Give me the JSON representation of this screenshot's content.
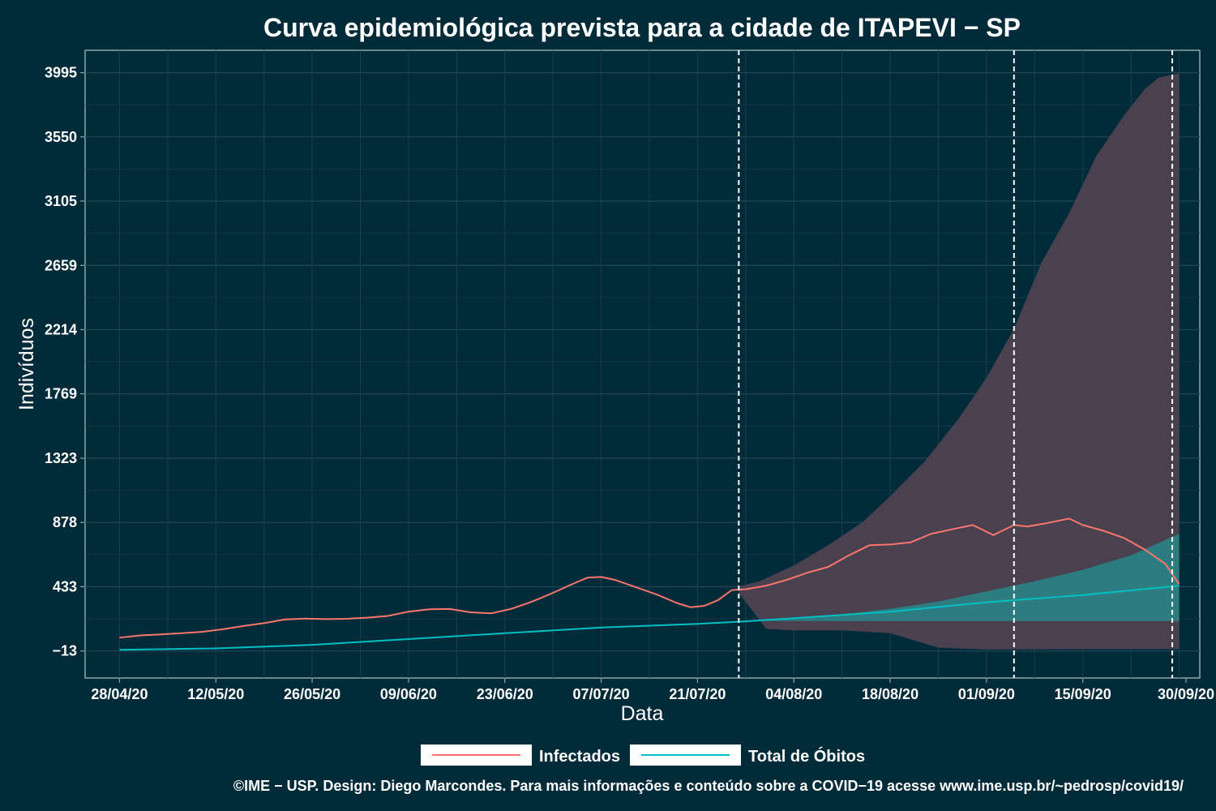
{
  "chart_data": {
    "type": "line",
    "title": "Curva epidemiológica prevista para a cidade de ITAPEVI − SP",
    "xlabel": "Data",
    "ylabel": "Indivíduos",
    "x_range": [
      "2020-04-23",
      "2020-10-02"
    ],
    "ylim": [
      -200,
      4150
    ],
    "y_ticks": [
      -13,
      433,
      878,
      1323,
      1769,
      2214,
      2659,
      3105,
      3550,
      3995
    ],
    "y_tick_labels": [
      "−13",
      "433",
      "878",
      "1323",
      "1769",
      "2214",
      "2659",
      "3105",
      "3550",
      "3995"
    ],
    "x_ticks": [
      "2020-04-28",
      "2020-05-12",
      "2020-05-26",
      "2020-06-09",
      "2020-06-23",
      "2020-07-07",
      "2020-07-21",
      "2020-08-04",
      "2020-08-18",
      "2020-09-01",
      "2020-09-15",
      "2020-09-30"
    ],
    "x_tick_labels": [
      "28/04/20",
      "12/05/20",
      "26/05/20",
      "09/06/20",
      "23/06/20",
      "07/07/20",
      "21/07/20",
      "04/08/20",
      "18/08/20",
      "01/09/20",
      "15/09/20",
      "30/09/20"
    ],
    "vlines": [
      "2020-07-27",
      "2020-09-05",
      "2020-09-28"
    ],
    "grid": true,
    "legend_position": "bottom",
    "series": [
      {
        "name": "Infectados",
        "color": "#f8766d",
        "points": [
          [
            "2020-04-28",
            80
          ],
          [
            "2020-05-01",
            95
          ],
          [
            "2020-05-04",
            102
          ],
          [
            "2020-05-07",
            110
          ],
          [
            "2020-05-10",
            120
          ],
          [
            "2020-05-13",
            138
          ],
          [
            "2020-05-16",
            160
          ],
          [
            "2020-05-19",
            180
          ],
          [
            "2020-05-22",
            205
          ],
          [
            "2020-05-25",
            212
          ],
          [
            "2020-05-28",
            208
          ],
          [
            "2020-05-31",
            210
          ],
          [
            "2020-06-03",
            218
          ],
          [
            "2020-06-06",
            230
          ],
          [
            "2020-06-09",
            260
          ],
          [
            "2020-06-12",
            276
          ],
          [
            "2020-06-15",
            278
          ],
          [
            "2020-06-18",
            255
          ],
          [
            "2020-06-21",
            248
          ],
          [
            "2020-06-24",
            280
          ],
          [
            "2020-06-27",
            330
          ],
          [
            "2020-06-30",
            390
          ],
          [
            "2020-07-03",
            455
          ],
          [
            "2020-07-05",
            495
          ],
          [
            "2020-07-07",
            500
          ],
          [
            "2020-07-09",
            480
          ],
          [
            "2020-07-12",
            430
          ],
          [
            "2020-07-15",
            380
          ],
          [
            "2020-07-18",
            320
          ],
          [
            "2020-07-20",
            290
          ],
          [
            "2020-07-22",
            300
          ],
          [
            "2020-07-24",
            340
          ],
          [
            "2020-07-26",
            410
          ],
          [
            "2020-07-28",
            415
          ],
          [
            "2020-07-31",
            440
          ],
          [
            "2020-08-03",
            480
          ],
          [
            "2020-08-06",
            530
          ],
          [
            "2020-08-09",
            570
          ],
          [
            "2020-08-12",
            650
          ],
          [
            "2020-08-15",
            720
          ],
          [
            "2020-08-18",
            725
          ],
          [
            "2020-08-21",
            740
          ],
          [
            "2020-08-24",
            800
          ],
          [
            "2020-08-27",
            830
          ],
          [
            "2020-08-30",
            860
          ],
          [
            "2020-09-02",
            790
          ],
          [
            "2020-09-05",
            860
          ],
          [
            "2020-09-07",
            850
          ],
          [
            "2020-09-10",
            875
          ],
          [
            "2020-09-13",
            905
          ],
          [
            "2020-09-15",
            860
          ],
          [
            "2020-09-18",
            820
          ],
          [
            "2020-09-21",
            770
          ],
          [
            "2020-09-24",
            690
          ],
          [
            "2020-09-27",
            590
          ],
          [
            "2020-09-29",
            450
          ]
        ]
      },
      {
        "name": "Total de Óbitos",
        "color": "#00bfc4",
        "points": [
          [
            "2020-04-28",
            -5
          ],
          [
            "2020-05-12",
            5
          ],
          [
            "2020-05-26",
            30
          ],
          [
            "2020-06-09",
            70
          ],
          [
            "2020-06-23",
            110
          ],
          [
            "2020-07-07",
            150
          ],
          [
            "2020-07-21",
            175
          ],
          [
            "2020-07-27",
            190
          ],
          [
            "2020-08-04",
            215
          ],
          [
            "2020-08-18",
            260
          ],
          [
            "2020-09-01",
            325
          ],
          [
            "2020-09-15",
            375
          ],
          [
            "2020-09-29",
            440
          ]
        ]
      }
    ],
    "bands": [
      {
        "color": "#4a4150",
        "upper": [
          [
            "2020-07-27",
            433
          ],
          [
            "2020-07-30",
            470
          ],
          [
            "2020-08-04",
            580
          ],
          [
            "2020-08-09",
            720
          ],
          [
            "2020-08-14",
            880
          ],
          [
            "2020-08-18",
            1060
          ],
          [
            "2020-08-23",
            1300
          ],
          [
            "2020-08-28",
            1600
          ],
          [
            "2020-09-01",
            1880
          ],
          [
            "2020-09-05",
            2220
          ],
          [
            "2020-09-09",
            2680
          ],
          [
            "2020-09-13",
            3020
          ],
          [
            "2020-09-17",
            3420
          ],
          [
            "2020-09-21",
            3700
          ],
          [
            "2020-09-24",
            3880
          ],
          [
            "2020-09-26",
            3960
          ],
          [
            "2020-09-29",
            3990
          ]
        ],
        "lower": [
          [
            "2020-09-29",
            0
          ],
          [
            "2020-09-15",
            0
          ],
          [
            "2020-09-01",
            -3
          ],
          [
            "2020-08-25",
            10
          ],
          [
            "2020-08-18",
            110
          ],
          [
            "2020-08-11",
            130
          ],
          [
            "2020-08-04",
            130
          ],
          [
            "2020-07-31",
            140
          ],
          [
            "2020-07-27",
            390
          ]
        ]
      },
      {
        "color": "#2d7d80",
        "upper": [
          [
            "2020-07-27",
            190
          ],
          [
            "2020-08-04",
            215
          ],
          [
            "2020-08-11",
            240
          ],
          [
            "2020-08-18",
            280
          ],
          [
            "2020-08-25",
            330
          ],
          [
            "2020-09-01",
            400
          ],
          [
            "2020-09-08",
            470
          ],
          [
            "2020-09-15",
            550
          ],
          [
            "2020-09-22",
            650
          ],
          [
            "2020-09-29",
            800
          ]
        ],
        "lower": [
          [
            "2020-09-29",
            195
          ],
          [
            "2020-07-27",
            195
          ]
        ]
      }
    ]
  },
  "legend": [
    {
      "label": "Infectados",
      "color": "#f8766d"
    },
    {
      "label": "Total de Óbitos",
      "color": "#00bfc4"
    }
  ],
  "caption": "©IME − USP. Design: Diego Marcondes. Para mais informações e conteúdo sobre a COVID−19 acesse www.ime.usp.br/~pedrosp/covid19/"
}
